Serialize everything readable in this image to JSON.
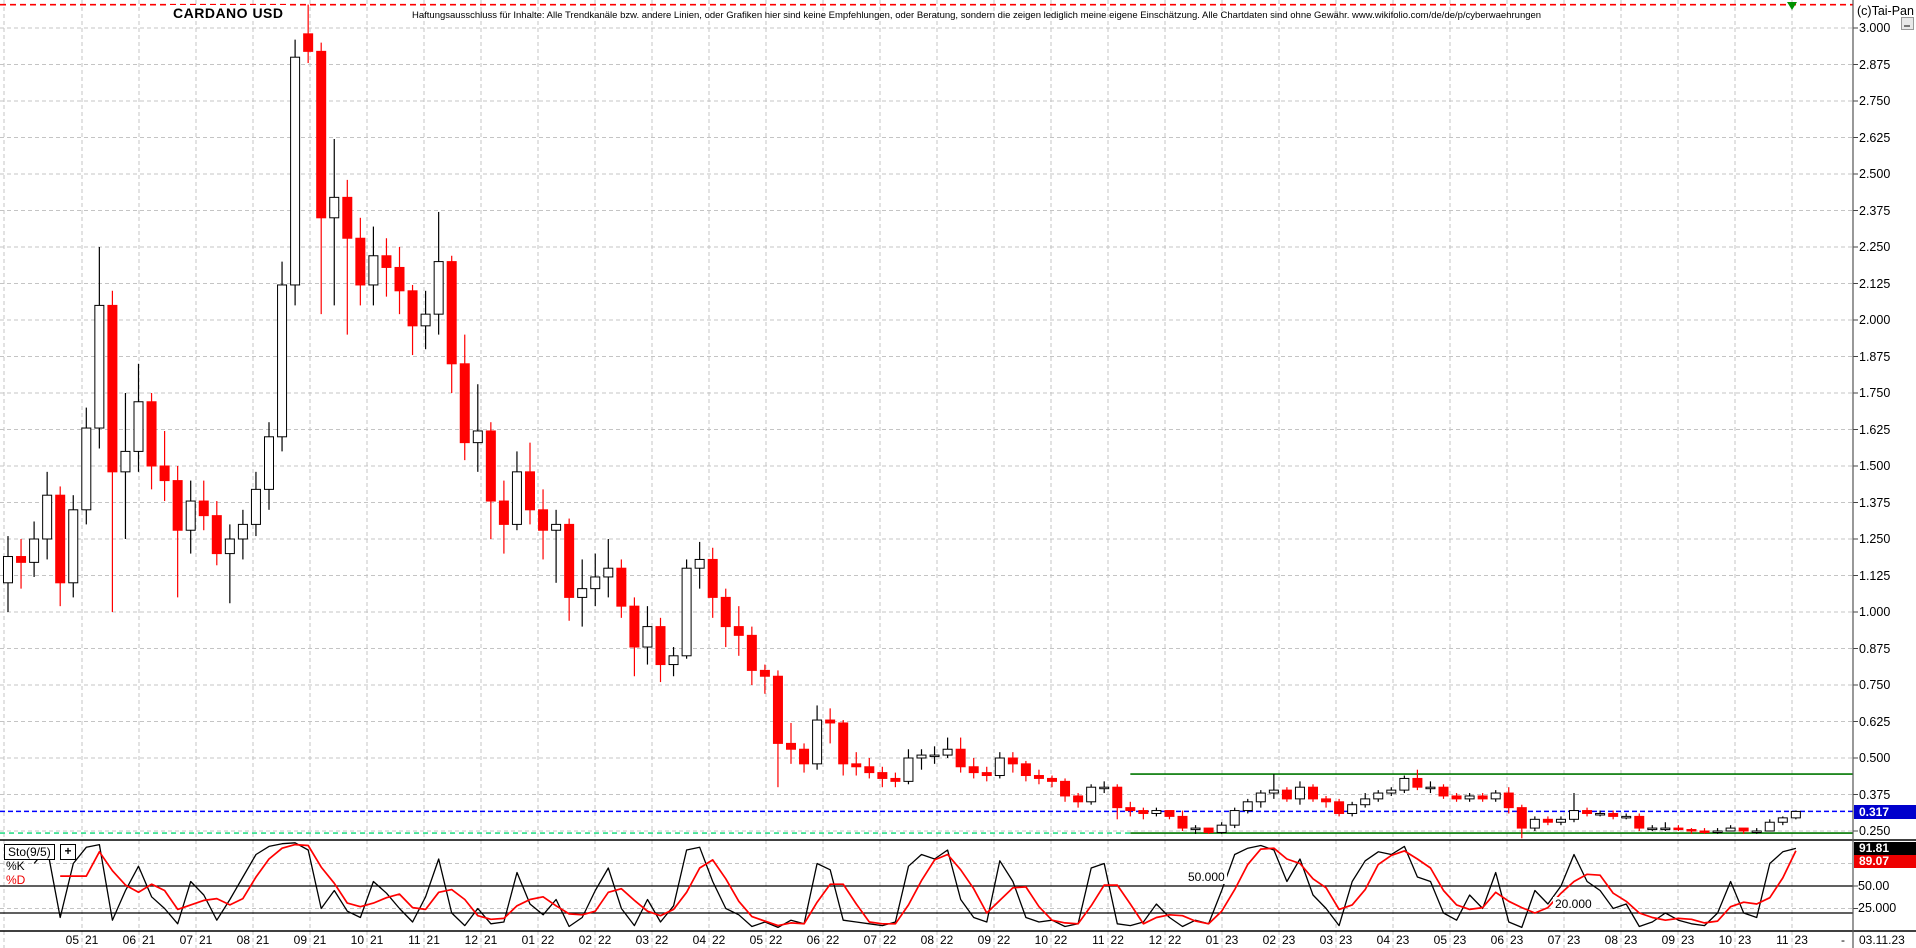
{
  "window": {
    "copyright": "(c)Tai-Pan",
    "minimize_icon": "window-minimize-box",
    "bottom_dash": "-",
    "bottom_right_date": "03.11.23"
  },
  "header": {
    "title": "CARDANO USD",
    "disclaimer": "Haftungsausschluss für Inhalte: Alle Trendkanäle bzw. andere Linien, oder Grafiken hier sind keine Empfehlungen, oder Beratung, sondern die zeigen lediglich meine eigene Einschätzung. Alle Chartdaten sind ohne Gewähr.  www.wikifolio.com/de/de/p/cyberwaehrungen"
  },
  "colors": {
    "up_candle": "#ffffff",
    "up_outline": "#000000",
    "down_candle": "#ff0000",
    "grid": "#c4c4c4",
    "ath_line": "#ff0000",
    "current_price_line": "#0000ff",
    "current_price_badge_bg": "#0000cc",
    "support_dashed": "#2edd8a",
    "trend_solid_green": "#007700",
    "stoch_k": "#000000",
    "stoch_d": "#ff0000",
    "k_badge_bg": "#000000",
    "d_badge_bg": "#ee0000"
  },
  "price_axis": {
    "ticks": [
      "3.000",
      "2.875",
      "2.750",
      "2.625",
      "2.500",
      "2.375",
      "2.250",
      "2.125",
      "2.000",
      "1.875",
      "1.750",
      "1.625",
      "1.500",
      "1.375",
      "1.250",
      "1.125",
      "1.000",
      "0.875",
      "0.750",
      "0.625",
      "0.500",
      "0.375",
      "0.250"
    ],
    "current_price_badge": {
      "label": "0.317",
      "value": 0.317
    }
  },
  "time_axis": {
    "months": [
      "05/21",
      "06/21",
      "07/21",
      "08/21",
      "09/21",
      "10/21",
      "11/21",
      "12/21",
      "01/22",
      "02/22",
      "03/22",
      "04/22",
      "05/22",
      "06/22",
      "07/22",
      "08/22",
      "09/22",
      "10/22",
      "11/22",
      "12/22",
      "01/23",
      "02/23",
      "03/23",
      "04/23",
      "05/23",
      "06/23",
      "07/23",
      "08/23",
      "09/23",
      "10/23",
      "11/23"
    ]
  },
  "indicator_panel": {
    "name": "Sto(9/5)",
    "plus_button": "+",
    "k_label": "%K",
    "d_label": "%D",
    "right_labels": [
      {
        "label": "91.81",
        "value": 91.81,
        "badge": "black"
      },
      {
        "label": "89.07",
        "value": 89.07,
        "badge": "red"
      },
      {
        "label": "50.00",
        "value": 50
      },
      {
        "label": "25.000",
        "value": 25
      }
    ],
    "inplot_labels": [
      {
        "label": "50.000",
        "value": 50
      },
      {
        "label": "20.000",
        "value": 20
      }
    ],
    "solid_levels": [
      50,
      20
    ],
    "dashed_levels": [
      75,
      25
    ]
  },
  "chart_data": {
    "type": "candlestick",
    "title": "CARDANO USD",
    "interval": "weekly (approximated from daily chart)",
    "start_date": "2021-03-22",
    "end_date": "2023-11-03",
    "ylim": [
      0.22,
      3.1
    ],
    "price_gridline_step": 0.125,
    "legend_position": "none",
    "grid": true,
    "overlays": {
      "ath_line": {
        "style": "dashed",
        "price": 3.08,
        "span": "full"
      },
      "current_price_line": {
        "style": "dashed",
        "price": 0.317,
        "span": "full"
      },
      "support_dashed_light_green": {
        "style": "dashed",
        "price": 0.243,
        "from_frac": 0.0,
        "to_frac": 0.61
      },
      "resistance_solid_green": {
        "style": "solid",
        "price": 0.445,
        "from_frac": 0.61,
        "to_frac": 1.0
      },
      "support_solid_green": {
        "style": "solid",
        "price": 0.243,
        "from_frac": 0.61,
        "to_frac": 1.0
      },
      "high_marker": {
        "shape": "triangle-down",
        "month_index": 30
      }
    },
    "candles": [
      [
        1.1,
        1.26,
        1.0,
        1.19
      ],
      [
        1.19,
        1.25,
        1.08,
        1.17
      ],
      [
        1.17,
        1.31,
        1.12,
        1.25
      ],
      [
        1.25,
        1.48,
        1.18,
        1.4
      ],
      [
        1.4,
        1.43,
        1.02,
        1.1
      ],
      [
        1.1,
        1.4,
        1.05,
        1.35
      ],
      [
        1.35,
        1.7,
        1.3,
        1.63
      ],
      [
        1.63,
        2.25,
        1.56,
        2.05
      ],
      [
        2.05,
        2.1,
        1.0,
        1.48
      ],
      [
        1.48,
        1.75,
        1.25,
        1.55
      ],
      [
        1.55,
        1.85,
        1.48,
        1.72
      ],
      [
        1.72,
        1.75,
        1.42,
        1.5
      ],
      [
        1.5,
        1.62,
        1.38,
        1.45
      ],
      [
        1.45,
        1.5,
        1.05,
        1.28
      ],
      [
        1.28,
        1.45,
        1.2,
        1.38
      ],
      [
        1.38,
        1.45,
        1.28,
        1.33
      ],
      [
        1.33,
        1.38,
        1.16,
        1.2
      ],
      [
        1.2,
        1.3,
        1.03,
        1.25
      ],
      [
        1.25,
        1.35,
        1.18,
        1.3
      ],
      [
        1.3,
        1.48,
        1.26,
        1.42
      ],
      [
        1.42,
        1.65,
        1.35,
        1.6
      ],
      [
        1.6,
        2.2,
        1.55,
        2.12
      ],
      [
        2.12,
        2.96,
        2.05,
        2.9
      ],
      [
        2.98,
        3.08,
        2.88,
        2.92
      ],
      [
        2.92,
        2.95,
        2.02,
        2.35
      ],
      [
        2.35,
        2.62,
        2.05,
        2.42
      ],
      [
        2.42,
        2.48,
        1.95,
        2.28
      ],
      [
        2.28,
        2.35,
        2.05,
        2.12
      ],
      [
        2.12,
        2.32,
        2.05,
        2.22
      ],
      [
        2.22,
        2.28,
        2.08,
        2.18
      ],
      [
        2.18,
        2.25,
        2.02,
        2.1
      ],
      [
        2.1,
        2.12,
        1.88,
        1.98
      ],
      [
        1.98,
        2.1,
        1.9,
        2.02
      ],
      [
        2.02,
        2.37,
        1.95,
        2.2
      ],
      [
        2.2,
        2.22,
        1.75,
        1.85
      ],
      [
        1.85,
        1.95,
        1.52,
        1.58
      ],
      [
        1.58,
        1.78,
        1.48,
        1.62
      ],
      [
        1.62,
        1.65,
        1.25,
        1.38
      ],
      [
        1.38,
        1.45,
        1.2,
        1.3
      ],
      [
        1.3,
        1.55,
        1.28,
        1.48
      ],
      [
        1.48,
        1.58,
        1.3,
        1.35
      ],
      [
        1.35,
        1.42,
        1.18,
        1.28
      ],
      [
        1.28,
        1.35,
        1.1,
        1.3
      ],
      [
        1.3,
        1.32,
        0.97,
        1.05
      ],
      [
        1.05,
        1.18,
        0.95,
        1.08
      ],
      [
        1.08,
        1.2,
        1.02,
        1.12
      ],
      [
        1.12,
        1.25,
        1.05,
        1.15
      ],
      [
        1.15,
        1.18,
        0.98,
        1.02
      ],
      [
        1.02,
        1.05,
        0.78,
        0.88
      ],
      [
        0.88,
        1.02,
        0.82,
        0.95
      ],
      [
        0.95,
        0.98,
        0.76,
        0.82
      ],
      [
        0.82,
        0.88,
        0.78,
        0.85
      ],
      [
        0.85,
        1.18,
        0.84,
        1.15
      ],
      [
        1.15,
        1.24,
        1.08,
        1.18
      ],
      [
        1.18,
        1.22,
        0.98,
        1.05
      ],
      [
        1.05,
        1.08,
        0.88,
        0.95
      ],
      [
        0.95,
        1.02,
        0.85,
        0.92
      ],
      [
        0.92,
        0.95,
        0.75,
        0.8
      ],
      [
        0.8,
        0.82,
        0.72,
        0.78
      ],
      [
        0.78,
        0.8,
        0.4,
        0.55
      ],
      [
        0.55,
        0.62,
        0.48,
        0.53
      ],
      [
        0.53,
        0.55,
        0.45,
        0.48
      ],
      [
        0.48,
        0.68,
        0.46,
        0.63
      ],
      [
        0.63,
        0.67,
        0.55,
        0.62
      ],
      [
        0.62,
        0.63,
        0.44,
        0.48
      ],
      [
        0.48,
        0.52,
        0.44,
        0.47
      ],
      [
        0.47,
        0.5,
        0.43,
        0.45
      ],
      [
        0.45,
        0.47,
        0.4,
        0.43
      ],
      [
        0.43,
        0.45,
        0.4,
        0.42
      ],
      [
        0.42,
        0.53,
        0.41,
        0.5
      ],
      [
        0.5,
        0.53,
        0.46,
        0.51
      ],
      [
        0.51,
        0.54,
        0.48,
        0.51
      ],
      [
        0.51,
        0.57,
        0.5,
        0.53
      ],
      [
        0.53,
        0.57,
        0.45,
        0.47
      ],
      [
        0.47,
        0.5,
        0.43,
        0.45
      ],
      [
        0.45,
        0.47,
        0.42,
        0.44
      ],
      [
        0.44,
        0.52,
        0.43,
        0.5
      ],
      [
        0.5,
        0.52,
        0.45,
        0.48
      ],
      [
        0.48,
        0.49,
        0.42,
        0.44
      ],
      [
        0.44,
        0.46,
        0.41,
        0.43
      ],
      [
        0.43,
        0.44,
        0.4,
        0.42
      ],
      [
        0.42,
        0.43,
        0.35,
        0.37
      ],
      [
        0.37,
        0.38,
        0.33,
        0.35
      ],
      [
        0.35,
        0.41,
        0.34,
        0.4
      ],
      [
        0.4,
        0.42,
        0.38,
        0.4
      ],
      [
        0.4,
        0.41,
        0.29,
        0.33
      ],
      [
        0.33,
        0.35,
        0.3,
        0.32
      ],
      [
        0.32,
        0.33,
        0.29,
        0.31
      ],
      [
        0.31,
        0.33,
        0.3,
        0.32
      ],
      [
        0.32,
        0.32,
        0.29,
        0.3
      ],
      [
        0.3,
        0.32,
        0.25,
        0.26
      ],
      [
        0.26,
        0.27,
        0.24,
        0.26
      ],
      [
        0.26,
        0.26,
        0.24,
        0.245
      ],
      [
        0.245,
        0.28,
        0.24,
        0.27
      ],
      [
        0.27,
        0.33,
        0.26,
        0.32
      ],
      [
        0.32,
        0.36,
        0.31,
        0.35
      ],
      [
        0.35,
        0.39,
        0.33,
        0.38
      ],
      [
        0.38,
        0.445,
        0.36,
        0.39
      ],
      [
        0.39,
        0.4,
        0.35,
        0.36
      ],
      [
        0.36,
        0.42,
        0.34,
        0.4
      ],
      [
        0.4,
        0.41,
        0.35,
        0.36
      ],
      [
        0.36,
        0.37,
        0.33,
        0.35
      ],
      [
        0.35,
        0.36,
        0.3,
        0.31
      ],
      [
        0.31,
        0.35,
        0.3,
        0.34
      ],
      [
        0.34,
        0.38,
        0.33,
        0.36
      ],
      [
        0.36,
        0.39,
        0.35,
        0.38
      ],
      [
        0.38,
        0.4,
        0.37,
        0.39
      ],
      [
        0.39,
        0.44,
        0.38,
        0.43
      ],
      [
        0.43,
        0.46,
        0.39,
        0.4
      ],
      [
        0.4,
        0.42,
        0.38,
        0.4
      ],
      [
        0.4,
        0.41,
        0.36,
        0.37
      ],
      [
        0.37,
        0.38,
        0.35,
        0.36
      ],
      [
        0.36,
        0.38,
        0.35,
        0.37
      ],
      [
        0.37,
        0.38,
        0.35,
        0.36
      ],
      [
        0.36,
        0.39,
        0.35,
        0.38
      ],
      [
        0.38,
        0.4,
        0.31,
        0.33
      ],
      [
        0.33,
        0.34,
        0.225,
        0.26
      ],
      [
        0.26,
        0.3,
        0.25,
        0.29
      ],
      [
        0.29,
        0.3,
        0.27,
        0.28
      ],
      [
        0.28,
        0.3,
        0.27,
        0.29
      ],
      [
        0.29,
        0.38,
        0.28,
        0.32
      ],
      [
        0.32,
        0.33,
        0.3,
        0.31
      ],
      [
        0.31,
        0.32,
        0.3,
        0.31
      ],
      [
        0.31,
        0.32,
        0.29,
        0.3
      ],
      [
        0.3,
        0.31,
        0.29,
        0.3
      ],
      [
        0.3,
        0.31,
        0.25,
        0.26
      ],
      [
        0.26,
        0.27,
        0.25,
        0.26
      ],
      [
        0.26,
        0.28,
        0.25,
        0.26
      ],
      [
        0.26,
        0.27,
        0.25,
        0.255
      ],
      [
        0.255,
        0.26,
        0.24,
        0.25
      ],
      [
        0.25,
        0.26,
        0.24,
        0.245
      ],
      [
        0.245,
        0.26,
        0.24,
        0.25
      ],
      [
        0.25,
        0.27,
        0.25,
        0.26
      ],
      [
        0.26,
        0.26,
        0.24,
        0.25
      ],
      [
        0.25,
        0.26,
        0.24,
        0.25
      ],
      [
        0.25,
        0.29,
        0.25,
        0.28
      ],
      [
        0.28,
        0.3,
        0.27,
        0.295
      ],
      [
        0.295,
        0.32,
        0.29,
        0.317
      ]
    ],
    "stoch_k": [
      null,
      null,
      75,
      92,
      15,
      75,
      93,
      96,
      12,
      45,
      72,
      38,
      25,
      8,
      55,
      40,
      12,
      35,
      60,
      85,
      94,
      97,
      98,
      90,
      25,
      45,
      22,
      15,
      55,
      42,
      25,
      10,
      38,
      80,
      20,
      6,
      25,
      8,
      10,
      65,
      30,
      18,
      35,
      5,
      15,
      45,
      70,
      25,
      6,
      35,
      10,
      28,
      90,
      93,
      55,
      25,
      18,
      5,
      10,
      4,
      12,
      8,
      75,
      68,
      12,
      10,
      8,
      6,
      10,
      72,
      85,
      80,
      90,
      35,
      15,
      10,
      78,
      55,
      15,
      10,
      12,
      5,
      8,
      70,
      75,
      8,
      6,
      10,
      30,
      15,
      5,
      12,
      8,
      45,
      85,
      92,
      95,
      90,
      55,
      80,
      40,
      25,
      6,
      55,
      78,
      88,
      85,
      94,
      60,
      55,
      20,
      12,
      40,
      25,
      65,
      10,
      4,
      45,
      30,
      50,
      85,
      55,
      45,
      25,
      30,
      5,
      10,
      20,
      12,
      8,
      6,
      20,
      55,
      20,
      15,
      75,
      88,
      91.81
    ],
    "stoch_d": [
      null,
      null,
      null,
      null,
      61,
      61,
      61,
      88,
      67,
      51,
      43,
      52,
      45,
      24,
      29,
      34,
      36,
      29,
      36,
      60,
      80,
      92,
      96,
      95,
      71,
      53,
      31,
      27,
      31,
      37,
      41,
      26,
      24,
      43,
      46,
      35,
      17,
      13,
      14,
      28,
      35,
      38,
      28,
      19,
      18,
      22,
      43,
      47,
      34,
      22,
      17,
      24,
      43,
      70,
      79,
      58,
      33,
      16,
      11,
      6,
      9,
      8,
      32,
      52,
      52,
      30,
      10,
      8,
      8,
      29,
      56,
      79,
      85,
      68,
      47,
      20,
      34,
      48,
      49,
      27,
      12,
      9,
      8,
      28,
      51,
      51,
      30,
      8,
      15,
      18,
      17,
      11,
      8,
      22,
      46,
      74,
      91,
      92,
      80,
      75,
      58,
      48,
      24,
      29,
      46,
      74,
      84,
      89,
      80,
      70,
      45,
      29,
      24,
      26,
      43,
      33,
      26,
      20,
      26,
      42,
      55,
      63,
      62,
      42,
      33,
      20,
      15,
      12,
      14,
      13,
      9,
      11,
      27,
      32,
      30,
      37,
      59,
      89.07
    ],
    "stoch_last": {
      "k": 91.81,
      "d": 89.07
    }
  }
}
